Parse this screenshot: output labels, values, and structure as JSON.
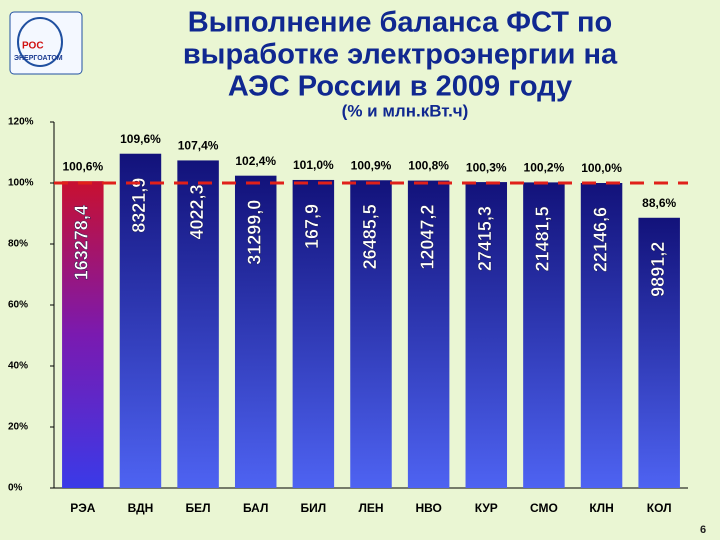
{
  "logo_text": [
    "РОС",
    "ЭНЕРГОАТОМ"
  ],
  "page_number": "6",
  "chart_data": {
    "type": "bar",
    "title": [
      "Выполнение баланса ФСТ по",
      "выработке электроэнергии на",
      "АЭС России в 2009 году"
    ],
    "subtitle": "(% и млн.кВт.ч)",
    "categories": [
      "РЭА",
      "ВДН",
      "БЕЛ",
      "БАЛ",
      "БИЛ",
      "ЛЕН",
      "НВО",
      "КУР",
      "СМО",
      "КЛН",
      "КОЛ"
    ],
    "values": [
      100.6,
      109.6,
      107.4,
      102.4,
      101.0,
      100.9,
      100.8,
      100.3,
      100.2,
      100.0,
      88.6
    ],
    "value_labels": [
      "100,6%",
      "109,6%",
      "107,4%",
      "102,4%",
      "101,0%",
      "100,9%",
      "100,8%",
      "100,3%",
      "100,2%",
      "100,0%",
      "88,6%"
    ],
    "bar_texts": [
      "163278,4",
      "8321,9",
      "4022,3",
      "31299,0",
      "167,9",
      "26485,5",
      "12047,2",
      "27415,3",
      "21481,5",
      "22146,6",
      "9891,2"
    ],
    "reference_line": 100,
    "reference_color": "#e0201a",
    "ylim": [
      0,
      120
    ],
    "yticks": [
      {
        "value": 0,
        "label": "0%"
      },
      {
        "value": 20,
        "label": "20%"
      },
      {
        "value": 40,
        "label": "40%"
      },
      {
        "value": 60,
        "label": "60%"
      },
      {
        "value": 80,
        "label": "80%"
      },
      {
        "value": 100,
        "label": "100%"
      },
      {
        "value": 120,
        "label": "120%"
      }
    ]
  }
}
